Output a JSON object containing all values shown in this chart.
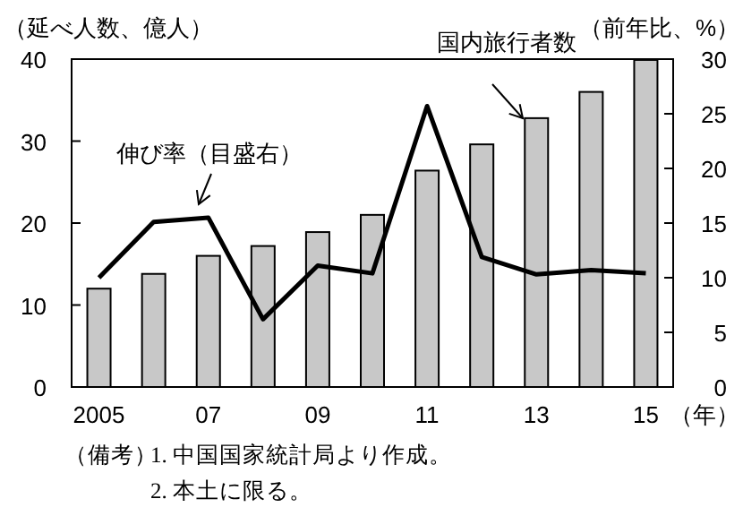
{
  "chart_data": {
    "type": "bar",
    "ylabel": "（延べ人数、億人）",
    "y2label": "（前年比、%）",
    "xlabel": "（年）",
    "categories": [
      "2005",
      null,
      "07",
      null,
      "09",
      null,
      "11",
      null,
      "13",
      null,
      "15"
    ],
    "series": [
      {
        "name": "国内旅行者数",
        "color": "#c8c8c8",
        "values": [
          12.0,
          13.8,
          16.0,
          17.2,
          18.9,
          21.0,
          26.4,
          29.6,
          32.8,
          36.0,
          39.9
        ]
      },
      {
        "name": "伸び率（目盛右）",
        "type": "line",
        "axis": "y2",
        "color": "#000000",
        "values": [
          10.0,
          15.1,
          15.5,
          6.2,
          11.1,
          10.4,
          25.7,
          11.9,
          10.3,
          10.7,
          10.4
        ]
      }
    ],
    "ylim": [
      0,
      40
    ],
    "yticks": [
      0,
      10,
      20,
      30,
      40
    ],
    "y2lim": [
      0,
      30
    ],
    "y2ticks": [
      0,
      5,
      10,
      15,
      20,
      25,
      30
    ],
    "legend": false,
    "grid": false,
    "annotations": [
      "（備考）",
      "1. 中国国家統計局より作成。",
      "2. 本土に限る。"
    ]
  }
}
